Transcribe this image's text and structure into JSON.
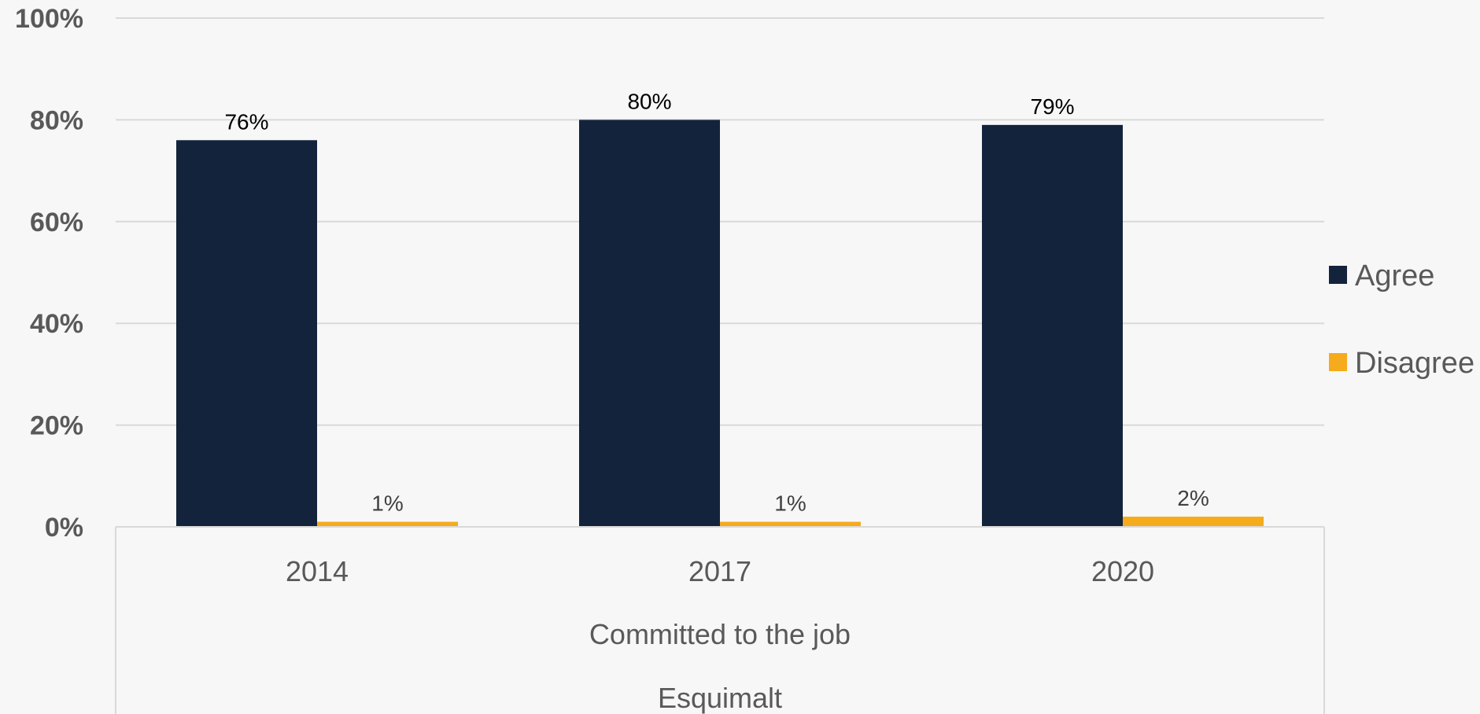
{
  "chart_data": {
    "type": "bar",
    "categories": [
      "2014",
      "2017",
      "2020"
    ],
    "group_labels": [
      "Committed to the job",
      "Esquimalt"
    ],
    "series": [
      {
        "name": "Agree",
        "values": [
          76,
          80,
          79
        ],
        "labels": [
          "76%",
          "80%",
          "79%"
        ],
        "color": "#14233c"
      },
      {
        "name": "Disagree",
        "values": [
          1,
          1,
          2
        ],
        "labels": [
          "1%",
          "1%",
          "2%"
        ],
        "color": "#f5ab1b"
      }
    ],
    "ylim": [
      0,
      100
    ],
    "yticks": [
      0,
      20,
      40,
      60,
      80,
      100
    ],
    "ytick_labels": [
      "0%",
      "20%",
      "40%",
      "60%",
      "80%",
      "100%"
    ],
    "grid": true,
    "legend": "right",
    "title": "",
    "xlabel": "",
    "ylabel": ""
  }
}
